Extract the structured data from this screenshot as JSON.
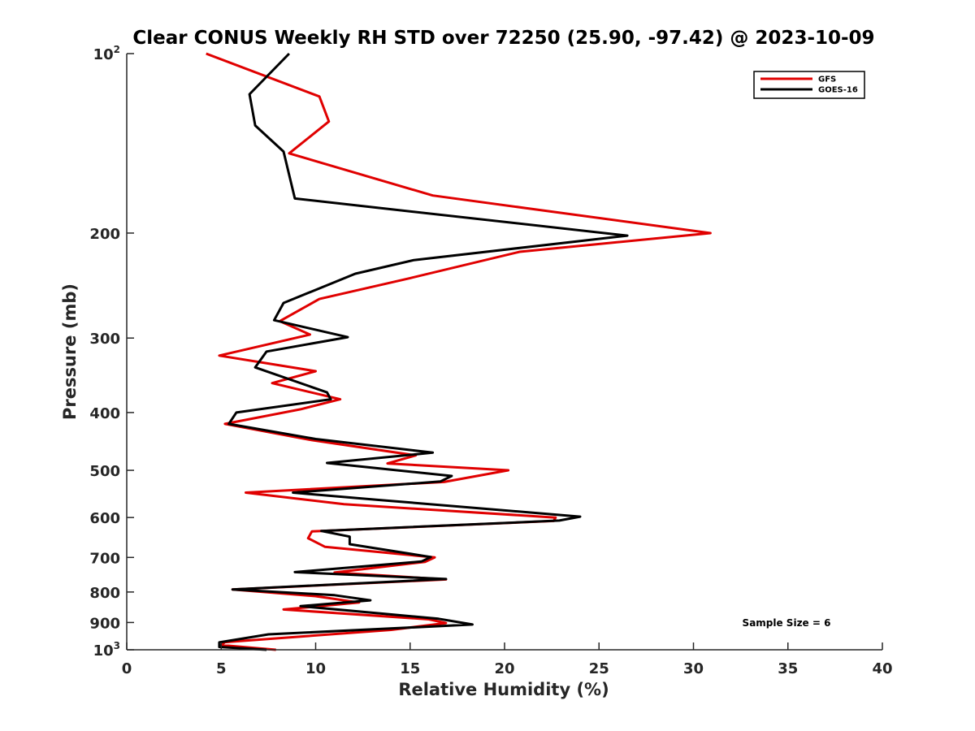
{
  "chart_data": {
    "type": "line",
    "title": "Clear CONUS Weekly RH STD over 72250 (25.90, -97.42) @ 2023-10-09",
    "xlabel": "Relative Humidity (%)",
    "ylabel": "Pressure (mb)",
    "xlim": [
      0,
      40
    ],
    "ylim": [
      100,
      1000
    ],
    "y_scale": "log",
    "y_reversed": true,
    "x_ticks": [
      "0",
      "5",
      "10",
      "15",
      "20",
      "25",
      "30",
      "35",
      "40"
    ],
    "y_ticks": [
      {
        "value": 100,
        "label": "10",
        "exp": "2"
      },
      {
        "value": 200,
        "label": "200"
      },
      {
        "value": 300,
        "label": "300"
      },
      {
        "value": 400,
        "label": "400"
      },
      {
        "value": 500,
        "label": "500"
      },
      {
        "value": 600,
        "label": "600"
      },
      {
        "value": 700,
        "label": "700"
      },
      {
        "value": 800,
        "label": "800"
      },
      {
        "value": 900,
        "label": "900"
      },
      {
        "value": 1000,
        "label": "10",
        "exp": "3"
      }
    ],
    "grid": false,
    "legend_position": "top-right",
    "annotation": "Sample Size = 6",
    "series": [
      {
        "name": "GFS",
        "color": "#e00000",
        "points": [
          [
            4.2,
            100
          ],
          [
            10.2,
            118
          ],
          [
            10.7,
            130
          ],
          [
            8.6,
            147
          ],
          [
            16.2,
            173
          ],
          [
            30.9,
            200
          ],
          [
            20.8,
            215
          ],
          [
            15.0,
            238
          ],
          [
            10.2,
            258
          ],
          [
            8.1,
            281
          ],
          [
            9.7,
            296
          ],
          [
            4.9,
            321
          ],
          [
            10.0,
            341
          ],
          [
            7.7,
            357
          ],
          [
            11.3,
            380
          ],
          [
            9.2,
            395
          ],
          [
            5.2,
            418
          ],
          [
            9.8,
            445
          ],
          [
            15.3,
            472
          ],
          [
            13.8,
            487
          ],
          [
            20.2,
            500
          ],
          [
            16.8,
            523
          ],
          [
            6.3,
            545
          ],
          [
            11.5,
            570
          ],
          [
            22.7,
            600
          ],
          [
            22.6,
            608
          ],
          [
            9.8,
            633
          ],
          [
            9.6,
            650
          ],
          [
            10.5,
            672
          ],
          [
            16.3,
            700
          ],
          [
            15.8,
            712
          ],
          [
            11.0,
            742
          ],
          [
            16.9,
            762
          ],
          [
            5.6,
            792
          ],
          [
            10.0,
            813
          ],
          [
            12.3,
            833
          ],
          [
            8.3,
            856
          ],
          [
            16.0,
            889
          ],
          [
            16.9,
            902
          ],
          [
            14.0,
            926
          ],
          [
            5.2,
            971
          ],
          [
            5.0,
            982
          ],
          [
            7.9,
            1000
          ]
        ]
      },
      {
        "name": "GOES-16",
        "color": "#000000",
        "points": [
          [
            8.6,
            100
          ],
          [
            6.5,
            117
          ],
          [
            6.8,
            132
          ],
          [
            8.3,
            146
          ],
          [
            8.9,
            175
          ],
          [
            26.5,
            202
          ],
          [
            15.2,
            222
          ],
          [
            12.1,
            234
          ],
          [
            8.3,
            262
          ],
          [
            7.8,
            280
          ],
          [
            11.7,
            299
          ],
          [
            7.4,
            316
          ],
          [
            6.8,
            336
          ],
          [
            10.6,
            370
          ],
          [
            10.8,
            380
          ],
          [
            5.8,
            400
          ],
          [
            5.4,
            418
          ],
          [
            10.0,
            443
          ],
          [
            16.2,
            467
          ],
          [
            10.6,
            486
          ],
          [
            17.2,
            511
          ],
          [
            16.6,
            522
          ],
          [
            8.8,
            545
          ],
          [
            13.2,
            560
          ],
          [
            24.0,
            598
          ],
          [
            22.9,
            607
          ],
          [
            10.3,
            632
          ],
          [
            11.8,
            646
          ],
          [
            11.8,
            665
          ],
          [
            16.1,
            699
          ],
          [
            15.6,
            711
          ],
          [
            8.9,
            741
          ],
          [
            16.9,
            761
          ],
          [
            5.6,
            792
          ],
          [
            11.0,
            810
          ],
          [
            12.9,
            826
          ],
          [
            9.2,
            845
          ],
          [
            16.5,
            887
          ],
          [
            18.3,
            907
          ],
          [
            7.5,
            942
          ],
          [
            4.9,
            972
          ],
          [
            4.9,
            989
          ],
          [
            7.4,
            1000
          ]
        ]
      }
    ]
  }
}
